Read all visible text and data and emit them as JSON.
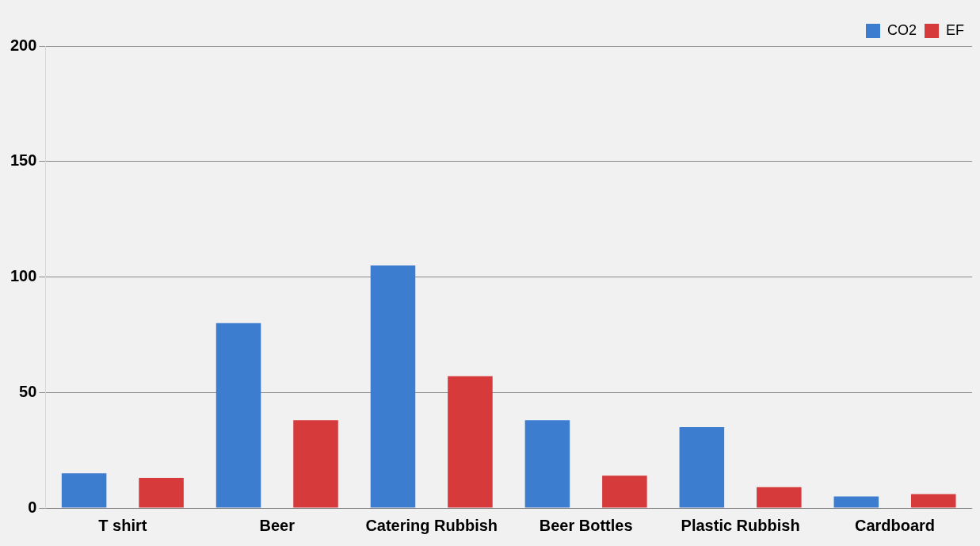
{
  "chart_data": {
    "type": "bar",
    "categories": [
      "T shirt",
      "Beer",
      "Catering Rubbish",
      "Beer Bottles",
      "Plastic Rubbish",
      "Cardboard"
    ],
    "series": [
      {
        "name": "CO2",
        "color": "#3c7dd0",
        "values": [
          15,
          80,
          105,
          38,
          35,
          5
        ]
      },
      {
        "name": "EF",
        "color": "#d63a3a",
        "values": [
          13,
          38,
          57,
          14,
          9,
          6
        ]
      }
    ],
    "ylim": [
      0,
      200
    ],
    "yticks": [
      0,
      50,
      100,
      150,
      200
    ],
    "grid": "y",
    "legend": "top right"
  }
}
